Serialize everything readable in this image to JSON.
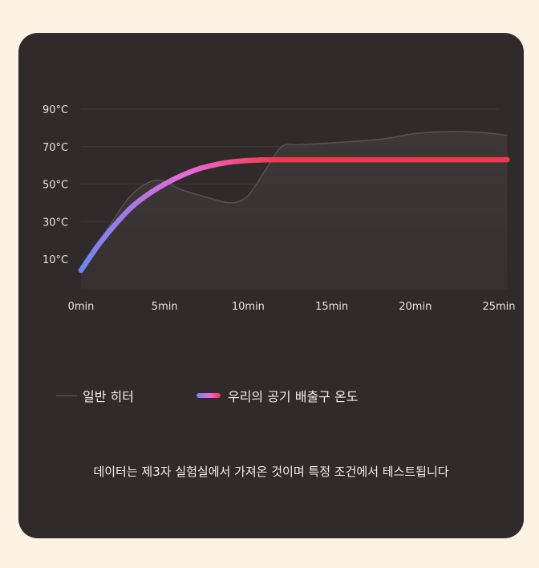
{
  "chart_data": {
    "type": "line",
    "xlabel": "",
    "ylabel": "",
    "x_ticks": [
      "0min",
      "5min",
      "10min",
      "15min",
      "20min",
      "25min"
    ],
    "y_ticks": [
      "10°C",
      "30°C",
      "50°C",
      "70°C",
      "90°C"
    ],
    "xlim": [
      0,
      25
    ],
    "ylim": [
      10,
      90
    ],
    "grid": true,
    "legend_position": "bottom-left",
    "series": [
      {
        "name": "일반 히터",
        "color": "#5a5252",
        "points": [
          [
            0,
            6
          ],
          [
            1.5,
            25
          ],
          [
            3,
            44
          ],
          [
            4.5,
            52
          ],
          [
            6,
            47
          ],
          [
            7.5,
            43
          ],
          [
            9,
            40
          ],
          [
            10,
            44
          ],
          [
            11,
            57
          ],
          [
            12,
            70
          ],
          [
            13,
            71
          ],
          [
            15,
            72
          ],
          [
            18,
            74
          ],
          [
            20,
            77
          ],
          [
            22,
            78
          ],
          [
            24,
            77.5
          ],
          [
            25.5,
            76
          ]
        ]
      },
      {
        "name": "우리의 공기 배출구 온도",
        "color_start": "#6f86f2",
        "color_mid": "#e86ad8",
        "color_end": "#f2394b",
        "points": [
          [
            0,
            4
          ],
          [
            1,
            17
          ],
          [
            2,
            28
          ],
          [
            3,
            37.5
          ],
          [
            4,
            44.5
          ],
          [
            5,
            50
          ],
          [
            6,
            54.5
          ],
          [
            7,
            58
          ],
          [
            8,
            60.3
          ],
          [
            9,
            61.8
          ],
          [
            10,
            62.6
          ],
          [
            11,
            62.9
          ],
          [
            12,
            63
          ],
          [
            25.5,
            63
          ]
        ]
      }
    ]
  },
  "footnote": "데이터는 제3자 실험실에서 가져온 것이며 특정 조건에서 테스트됩니다"
}
